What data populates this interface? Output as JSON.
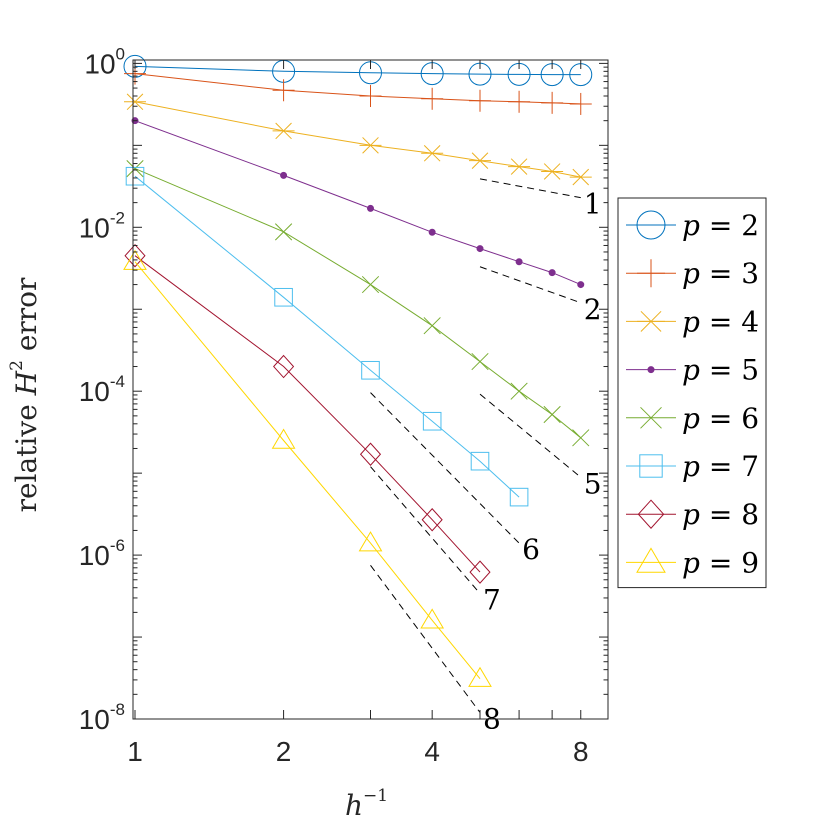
{
  "chart_data": {
    "type": "line",
    "x_scale": "log2",
    "y_scale": "log10",
    "xlabel": "h",
    "xlabel_sup": "−1",
    "ylabel_pre": "relative ",
    "ylabel_var": "H",
    "ylabel_sup": "2",
    "ylabel_post": " error",
    "xlim": [
      1,
      9
    ],
    "ylim": [
      1e-08,
      1.1
    ],
    "xticks": [
      {
        "value": 1,
        "label": "1"
      },
      {
        "value": 2,
        "label": "2"
      },
      {
        "value": 4,
        "label": "4"
      },
      {
        "value": 8,
        "label": "8"
      }
    ],
    "yticks": [
      {
        "value": 1,
        "base": "10",
        "exp": "0"
      },
      {
        "value": 0.01,
        "base": "10",
        "exp": "-2"
      },
      {
        "value": 0.0001,
        "base": "10",
        "exp": "-4"
      },
      {
        "value": 1e-06,
        "base": "10",
        "exp": "-6"
      },
      {
        "value": 1e-08,
        "base": "10",
        "exp": "-8"
      }
    ],
    "legend_position": "outside-right",
    "series": [
      {
        "name": "p = 2",
        "color": "#0072BD",
        "marker": "circle",
        "x": [
          1,
          2,
          3,
          4,
          5,
          6,
          7,
          8
        ],
        "y": [
          0.92,
          0.8,
          0.77,
          0.75,
          0.74,
          0.735,
          0.73,
          0.73
        ]
      },
      {
        "name": "p = 3",
        "color": "#D95319",
        "marker": "plus",
        "x": [
          1,
          2,
          3,
          4,
          5,
          6,
          7,
          8
        ],
        "y": [
          0.75,
          0.47,
          0.4,
          0.37,
          0.35,
          0.34,
          0.33,
          0.32
        ]
      },
      {
        "name": "p = 4",
        "color": "#EDB120",
        "marker": "asterisk",
        "x": [
          1,
          2,
          3,
          4,
          5,
          6,
          7,
          8
        ],
        "y": [
          0.34,
          0.15,
          0.1,
          0.08,
          0.065,
          0.055,
          0.048,
          0.041
        ]
      },
      {
        "name": "p = 5",
        "color": "#7E2F8E",
        "marker": "dot",
        "x": [
          1,
          2,
          3,
          4,
          5,
          6,
          7,
          8
        ],
        "y": [
          0.2,
          0.043,
          0.017,
          0.0087,
          0.0055,
          0.0038,
          0.0028,
          0.002
        ]
      },
      {
        "name": "p = 6",
        "color": "#77AC30",
        "marker": "x",
        "x": [
          1,
          2,
          3,
          4,
          5,
          6,
          7,
          8
        ],
        "y": [
          0.052,
          0.0088,
          0.002,
          0.00063,
          0.00023,
          0.0001,
          5.2e-05,
          2.7e-05
        ]
      },
      {
        "name": "p = 7",
        "color": "#4DBEEE",
        "marker": "square",
        "x": [
          1,
          2,
          3,
          4,
          5,
          6
        ],
        "y": [
          0.042,
          0.0014,
          0.00018,
          4.3e-05,
          1.4e-05,
          5.1e-06
        ]
      },
      {
        "name": "p = 8",
        "color": "#A2142F",
        "marker": "diamond",
        "x": [
          1,
          2,
          3,
          4,
          5
        ],
        "y": [
          0.0045,
          0.0002,
          1.7e-05,
          2.7e-06,
          6.2e-07
        ]
      },
      {
        "name": "p = 9",
        "color": "#FFD700",
        "marker": "triangle",
        "x": [
          1,
          2,
          3,
          4,
          5
        ],
        "y": [
          0.0038,
          2.5e-05,
          1.4e-06,
          1.6e-07,
          3.1e-08
        ]
      }
    ],
    "slope_lines": [
      {
        "label": "1",
        "x": [
          5,
          8
        ],
        "y": [
          0.039,
          0.023
        ]
      },
      {
        "label": "2",
        "x": [
          5,
          8
        ],
        "y": [
          0.0033,
          0.0012
        ]
      },
      {
        "label": "5",
        "x": [
          5,
          8
        ],
        "y": [
          9.2e-05,
          8.9e-06
        ]
      },
      {
        "label": "6",
        "x": [
          3,
          6
        ],
        "y": [
          9.6e-05,
          1.4e-06
        ]
      },
      {
        "label": "7",
        "x": [
          3,
          5
        ],
        "y": [
          1.2e-05,
          3.4e-07
        ]
      },
      {
        "label": "8",
        "x": [
          3,
          5
        ],
        "y": [
          7.5e-07,
          1.2e-08
        ]
      }
    ]
  }
}
